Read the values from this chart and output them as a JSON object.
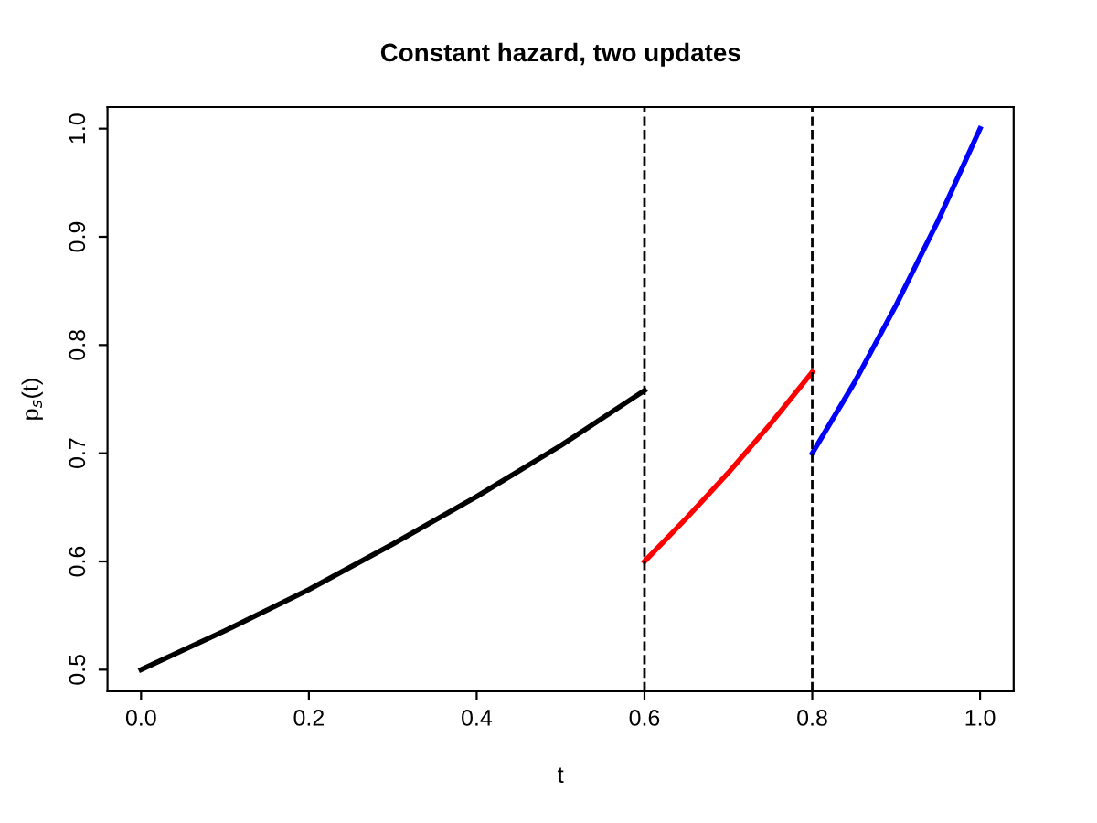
{
  "chart_data": {
    "type": "line",
    "title": "Constant hazard, two updates",
    "xlabel": "t",
    "ylabel": "p$_{s}$(t)",
    "series": [
      {
        "color": "#000000",
        "x": [
          0,
          0.1,
          0.2,
          0.3,
          0.4,
          0.5,
          0.6
        ],
        "values": [
          0.5,
          0.536,
          0.574,
          0.616,
          0.66,
          0.707,
          0.758
        ]
      },
      {
        "color": "#ff0000",
        "x": [
          0.6,
          0.65,
          0.7,
          0.75,
          0.8
        ],
        "values": [
          0.6,
          0.64,
          0.682,
          0.727,
          0.775
        ]
      },
      {
        "color": "#0000ff",
        "x": [
          0.8,
          0.85,
          0.9,
          0.95,
          1.0
        ],
        "values": [
          0.7,
          0.765,
          0.837,
          0.915,
          1.0
        ]
      }
    ],
    "xlim": [
      -0.04,
      1.04
    ],
    "ylim": [
      0.48,
      1.02
    ],
    "xticks": [
      {
        "value": 0,
        "label": "0.0"
      },
      0.2,
      0.4,
      0.6,
      0.8,
      {
        "value": 1,
        "label": "1.0"
      }
    ],
    "yticks": [
      0.5,
      0.6,
      0.7,
      0.8,
      0.9,
      {
        "value": 1,
        "label": "1.0"
      }
    ],
    "ref_lines": [
      {
        "axis": "x",
        "value": 0.6,
        "color": "#000000",
        "line_style": "dashed"
      },
      {
        "axis": "x",
        "value": 0.8,
        "color": "#000000",
        "line_style": "dashed"
      }
    ],
    "grid": false,
    "marker": "none",
    "line_style": "solid"
  }
}
